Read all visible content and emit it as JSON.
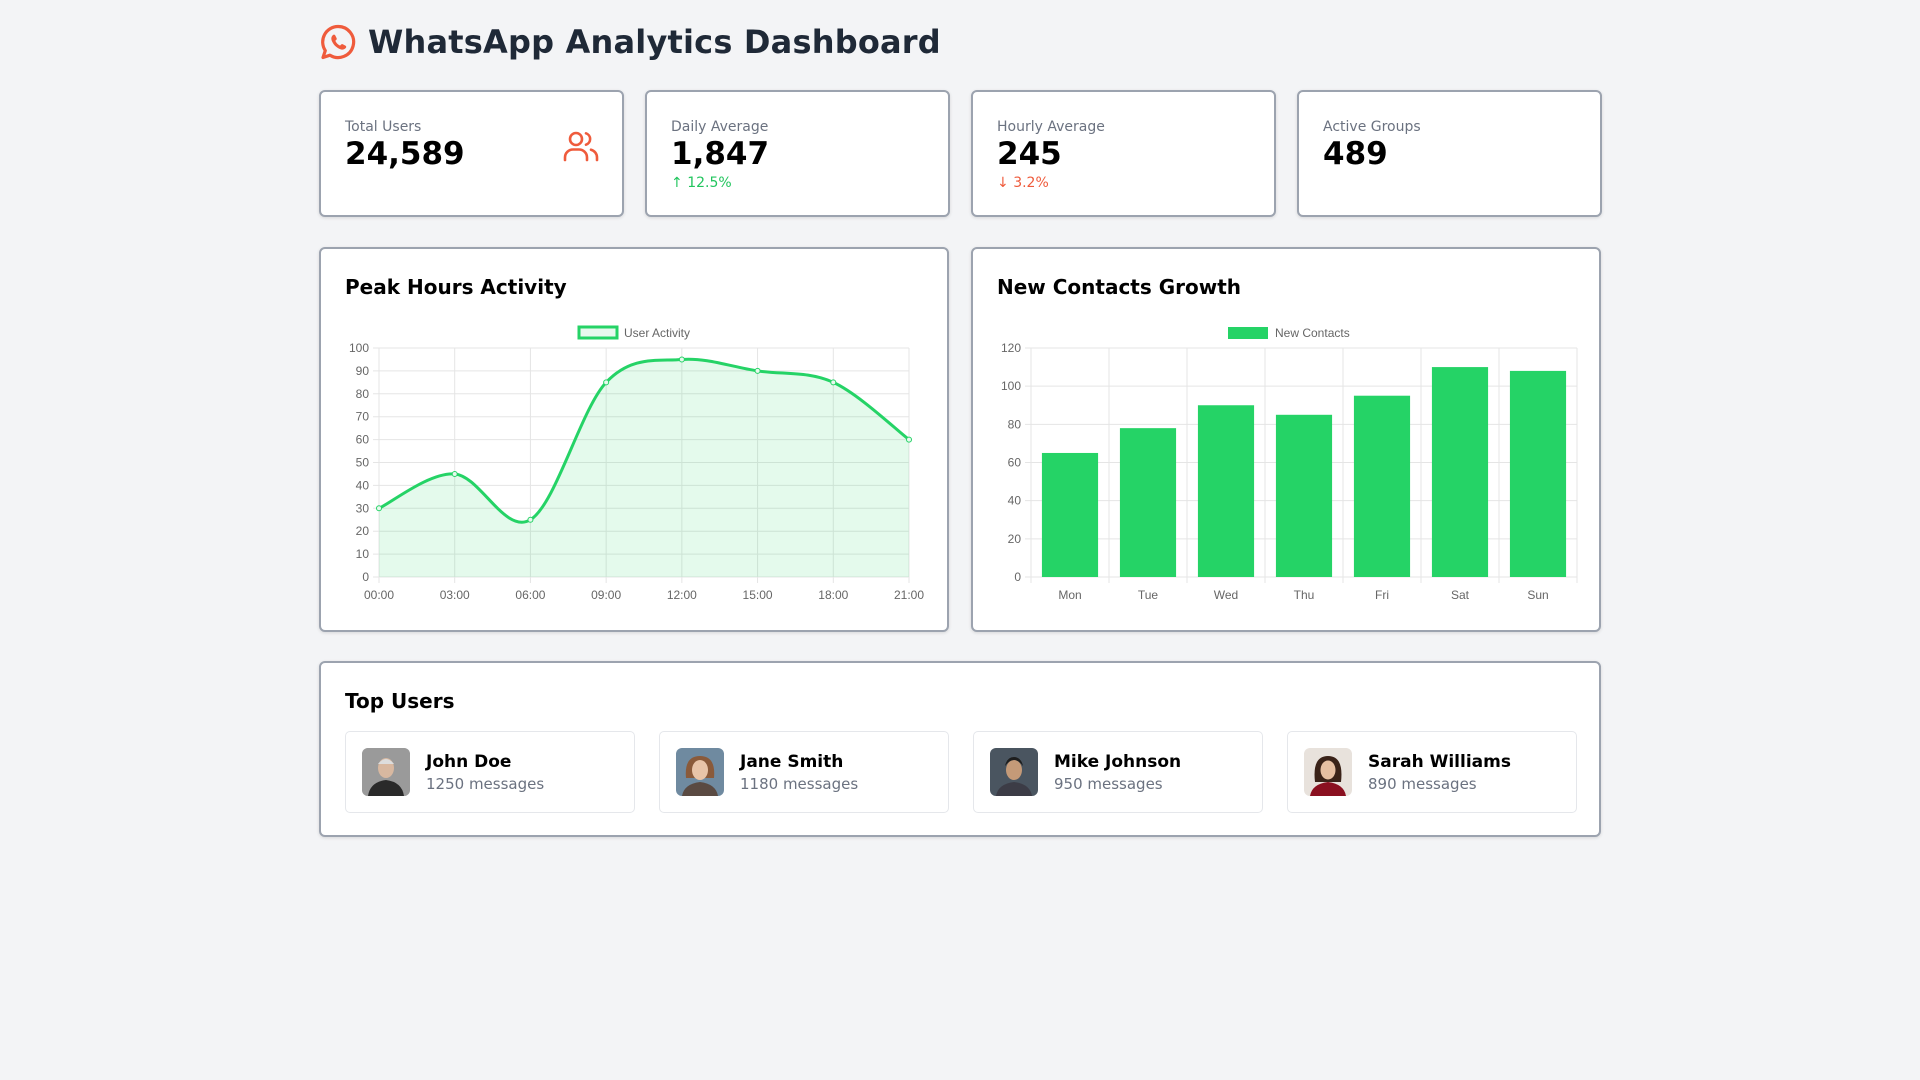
{
  "header": {
    "title": "WhatsApp Analytics Dashboard",
    "icon": "whatsapp-icon",
    "icon_color": "#ef5b3c"
  },
  "stats": [
    {
      "label": "Total Users",
      "value": "24,589",
      "icon": "users-icon"
    },
    {
      "label": "Daily Average",
      "value": "1,847",
      "change": "12.5%",
      "direction": "up"
    },
    {
      "label": "Hourly Average",
      "value": "245",
      "change": "3.2%",
      "direction": "down"
    },
    {
      "label": "Active Groups",
      "value": "489"
    }
  ],
  "colors": {
    "accent": "#25d366",
    "negative": "#ef5b3c",
    "icon": "#ef5b3c"
  },
  "peak_chart": {
    "title": "Peak Hours Activity"
  },
  "contacts_chart": {
    "title": "New Contacts Growth"
  },
  "chart_data": [
    {
      "type": "line",
      "title": "Peak Hours Activity",
      "categories": [
        "00:00",
        "03:00",
        "06:00",
        "09:00",
        "12:00",
        "15:00",
        "18:00",
        "21:00"
      ],
      "series": [
        {
          "name": "User Activity",
          "values": [
            30,
            45,
            25,
            85,
            95,
            90,
            85,
            60
          ]
        }
      ],
      "ylim": [
        0,
        100
      ],
      "yticks": [
        0,
        10,
        20,
        30,
        40,
        50,
        60,
        70,
        80,
        90,
        100
      ],
      "fill": true,
      "grid": true,
      "legend": "top"
    },
    {
      "type": "bar",
      "title": "New Contacts Growth",
      "categories": [
        "Mon",
        "Tue",
        "Wed",
        "Thu",
        "Fri",
        "Sat",
        "Sun"
      ],
      "series": [
        {
          "name": "New Contacts",
          "values": [
            65,
            78,
            90,
            85,
            95,
            110,
            108
          ]
        }
      ],
      "ylim": [
        0,
        120
      ],
      "yticks": [
        0,
        20,
        40,
        60,
        80,
        100,
        120
      ],
      "grid": true,
      "legend": "top"
    }
  ],
  "top_users": {
    "title": "Top Users",
    "users": [
      {
        "name": "John Doe",
        "messages": "1250 messages"
      },
      {
        "name": "Jane Smith",
        "messages": "1180 messages"
      },
      {
        "name": "Mike Johnson",
        "messages": "950 messages"
      },
      {
        "name": "Sarah Williams",
        "messages": "890 messages"
      }
    ]
  }
}
